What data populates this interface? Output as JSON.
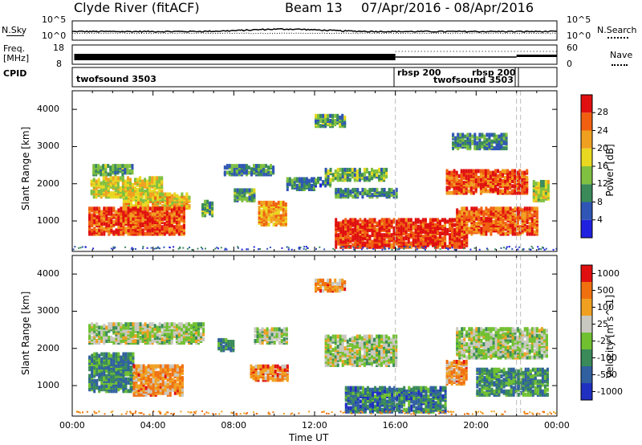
{
  "header": {
    "station": "Clyde River (fitACF)",
    "beam": "Beam 13",
    "dates": "07/Apr/2016 - 08/Apr/2016"
  },
  "top_panel": {
    "left_label": "N.Sky",
    "right_label": "N.Search",
    "ticks": [
      "10^5",
      "10^0"
    ],
    "right_ticks": [
      "10^5",
      "10^0"
    ]
  },
  "freq_panel": {
    "left_label_1": "Freq.",
    "left_label_2": "[MHz]",
    "ticks": [
      "18",
      "8"
    ],
    "right_label": "Nave",
    "right_ticks": [
      "60",
      "0"
    ]
  },
  "cpid_panel": {
    "label": "CPID",
    "entries": [
      "twofsound 3503",
      "rbsp 200",
      "twofsound 3503",
      "rbsp 200"
    ]
  },
  "chart_data": [
    {
      "type": "heatmap",
      "title": "",
      "xlabel": "Time UT",
      "ylabel": "Slant Range [km]",
      "x_ticks": [
        "00:00",
        "04:00",
        "08:00",
        "12:00",
        "16:00",
        "20:00",
        "00:00"
      ],
      "y_ticks": [
        "1000",
        "2000",
        "3000",
        "4000"
      ],
      "ylim": [
        180,
        4500
      ],
      "colorbar": {
        "label": "Power [dB]",
        "ticks": [
          "4",
          "8",
          "12",
          "16",
          "20",
          "24",
          "28"
        ],
        "colors": [
          "#2020e0",
          "#2f55b5",
          "#3a8a5a",
          "#80c040",
          "#e8d820",
          "#f0a020",
          "#f06010",
          "#e01010"
        ]
      },
      "regions": [
        {
          "t0": 1.0,
          "t1": 3.0,
          "r0": 2200,
          "r1": 2450,
          "level": 0.35
        },
        {
          "t0": 0.9,
          "t1": 4.5,
          "r0": 1600,
          "r1": 2100,
          "level": 0.55
        },
        {
          "t0": 2.5,
          "t1": 5.8,
          "r0": 1300,
          "r1": 1700,
          "level": 0.6
        },
        {
          "t0": 0.8,
          "t1": 5.5,
          "r0": 600,
          "r1": 1300,
          "level": 0.85
        },
        {
          "t0": 6.4,
          "t1": 7.0,
          "r0": 1100,
          "r1": 1500,
          "level": 0.4
        },
        {
          "t0": 7.5,
          "t1": 10.0,
          "r0": 2200,
          "r1": 2450,
          "level": 0.3
        },
        {
          "t0": 8.0,
          "t1": 9.0,
          "r0": 1500,
          "r1": 1800,
          "level": 0.35
        },
        {
          "t0": 9.2,
          "t1": 10.6,
          "r0": 850,
          "r1": 1450,
          "level": 0.7
        },
        {
          "t0": 10.6,
          "t1": 12.0,
          "r0": 1800,
          "r1": 2100,
          "level": 0.3
        },
        {
          "t0": 12.0,
          "t1": 12.8,
          "r0": 1900,
          "r1": 2100,
          "level": 0.25
        },
        {
          "t0": 12.5,
          "t1": 15.5,
          "r0": 2050,
          "r1": 2350,
          "level": 0.4
        },
        {
          "t0": 13.0,
          "t1": 16.0,
          "r0": 1600,
          "r1": 1800,
          "level": 0.3
        },
        {
          "t0": 12.0,
          "t1": 13.5,
          "r0": 3500,
          "r1": 3800,
          "level": 0.35
        },
        {
          "t0": 13.0,
          "t1": 19.5,
          "r0": 250,
          "r1": 1000,
          "level": 0.9
        },
        {
          "t0": 18.5,
          "t1": 22.5,
          "r0": 1700,
          "r1": 2300,
          "level": 0.85
        },
        {
          "t0": 19.0,
          "t1": 23.0,
          "r0": 600,
          "r1": 1300,
          "level": 0.8
        },
        {
          "t0": 22.8,
          "t1": 23.6,
          "r0": 1500,
          "r1": 2000,
          "level": 0.5
        },
        {
          "t0": 18.8,
          "t1": 21.5,
          "r0": 2900,
          "r1": 3300,
          "level": 0.3
        }
      ]
    },
    {
      "type": "heatmap",
      "title": "",
      "xlabel": "Time UT",
      "ylabel": "Slant Range [km]",
      "x_ticks": [
        "00:00",
        "04:00",
        "08:00",
        "12:00",
        "16:00",
        "20:00",
        "00:00"
      ],
      "y_ticks": [
        "1000",
        "2000",
        "3000",
        "4000"
      ],
      "ylim": [
        180,
        4500
      ],
      "colorbar": {
        "label": "Velocity [m s^-1]",
        "ticks": [
          "1000",
          "500",
          "100",
          "25",
          "-25",
          "-100",
          "-500",
          "-1000"
        ],
        "colors": [
          "#2030c0",
          "#3060a0",
          "#3a8a5a",
          "#70c030",
          "#c8c8c0",
          "#f0a020",
          "#f07010",
          "#e01010"
        ]
      },
      "regions": [
        {
          "t0": 0.8,
          "t1": 6.5,
          "r0": 2100,
          "r1": 2600,
          "level": 0.5
        },
        {
          "t0": 0.8,
          "t1": 3.0,
          "r0": 800,
          "r1": 1800,
          "level": 0.3
        },
        {
          "t0": 3.0,
          "t1": 5.5,
          "r0": 700,
          "r1": 1500,
          "level": 0.72
        },
        {
          "t0": 7.2,
          "t1": 8.0,
          "r0": 1900,
          "r1": 2200,
          "level": 0.3
        },
        {
          "t0": 9.0,
          "t1": 10.6,
          "r0": 2100,
          "r1": 2500,
          "level": 0.5
        },
        {
          "t0": 8.8,
          "t1": 10.6,
          "r0": 1100,
          "r1": 1500,
          "level": 0.75
        },
        {
          "t0": 12.5,
          "t1": 16.0,
          "r0": 1500,
          "r1": 2300,
          "level": 0.5
        },
        {
          "t0": 12.0,
          "t1": 13.5,
          "r0": 3500,
          "r1": 3800,
          "level": 0.72
        },
        {
          "t0": 13.5,
          "t1": 18.5,
          "r0": 250,
          "r1": 900,
          "level": 0.25
        },
        {
          "t0": 19.0,
          "t1": 23.5,
          "r0": 1700,
          "r1": 2500,
          "level": 0.5
        },
        {
          "t0": 20.0,
          "t1": 23.5,
          "r0": 700,
          "r1": 1400,
          "level": 0.3
        },
        {
          "t0": 18.5,
          "t1": 19.5,
          "r0": 1000,
          "r1": 1600,
          "level": 0.72
        }
      ]
    }
  ],
  "panel_divider_times": [
    16.0,
    22.0,
    22.2
  ]
}
